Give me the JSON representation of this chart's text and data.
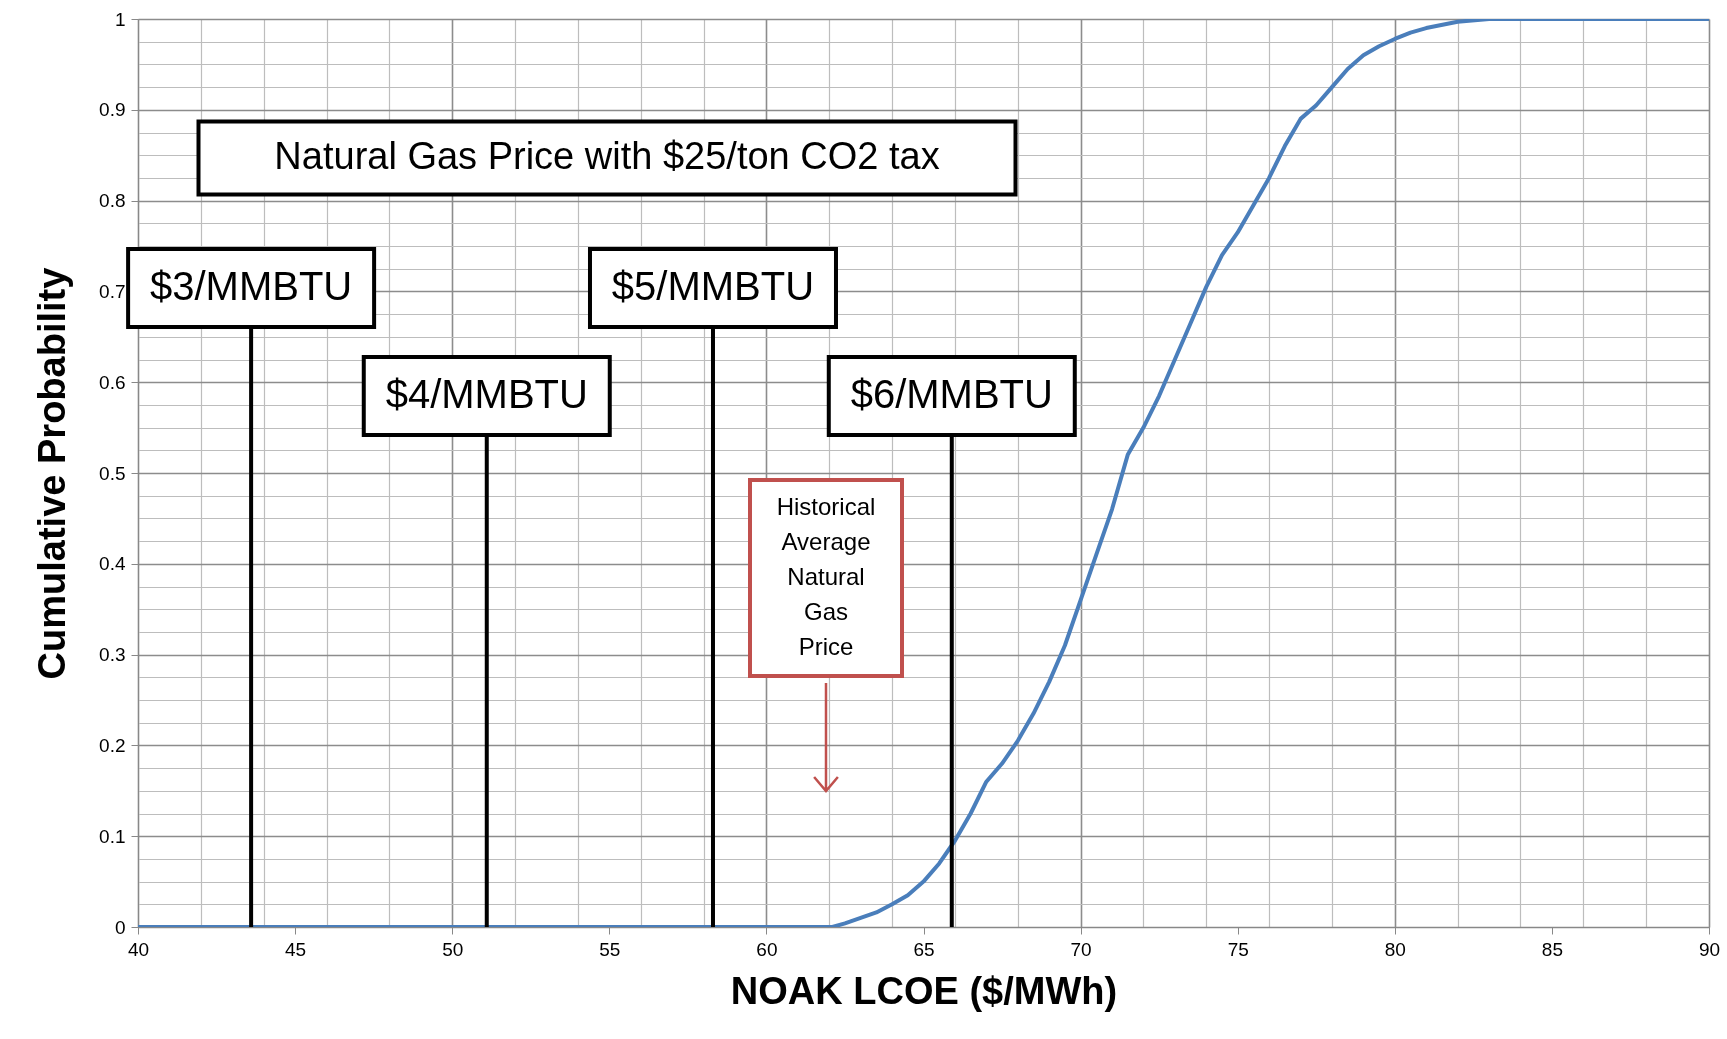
{
  "chart_data": {
    "type": "line",
    "xlabel": "NOAK LCOE ($/MWh)",
    "ylabel": "Cumulative Probability",
    "x": [
      40,
      62.1,
      62.5,
      63,
      63.5,
      64,
      64.5,
      65,
      65.5,
      66,
      66.5,
      67,
      67.5,
      68,
      68.5,
      69,
      69.5,
      70,
      70.5,
      71,
      71.5,
      72,
      72.5,
      73,
      73.5,
      74,
      74.5,
      75,
      75.5,
      76,
      76.5,
      77,
      77.5,
      78,
      78.5,
      79,
      79.5,
      80,
      80.5,
      81,
      82,
      83,
      90
    ],
    "values": [
      0,
      0,
      0.004,
      0.01,
      0.016,
      0.025,
      0.035,
      0.05,
      0.07,
      0.095,
      0.125,
      0.16,
      0.18,
      0.205,
      0.235,
      0.27,
      0.31,
      0.36,
      0.41,
      0.46,
      0.52,
      0.55,
      0.585,
      0.625,
      0.665,
      0.705,
      0.74,
      0.765,
      0.795,
      0.825,
      0.86,
      0.89,
      0.905,
      0.925,
      0.945,
      0.96,
      0.97,
      0.978,
      0.985,
      0.99,
      0.997,
      1,
      1
    ],
    "color": "#4a7ebb",
    "xlim": [
      40,
      90
    ],
    "xticks": [
      40,
      45,
      50,
      55,
      60,
      65,
      70,
      75,
      80,
      85,
      90
    ],
    "ylim": [
      0,
      1
    ],
    "yticks": [
      0,
      0.1,
      0.2,
      0.3,
      0.4,
      0.5,
      0.6,
      0.7,
      0.8,
      0.9,
      1
    ],
    "grid": true,
    "ref_lines": [
      {
        "axis": "x",
        "value": 43.6,
        "label": "$3/MMBTU",
        "color": "#000000"
      },
      {
        "axis": "x",
        "value": 51.1,
        "label": "$4/MMBTU",
        "color": "#000000"
      },
      {
        "axis": "x",
        "value": 58.3,
        "label": "$5/MMBTU",
        "color": "#000000"
      },
      {
        "axis": "x",
        "value": 65.9,
        "label": "$6/MMBTU",
        "color": "#000000"
      }
    ],
    "annotations": [
      "Natural Gas Price with $25/ton CO2 tax",
      "Historical Average Natural Gas Price"
    ]
  }
}
